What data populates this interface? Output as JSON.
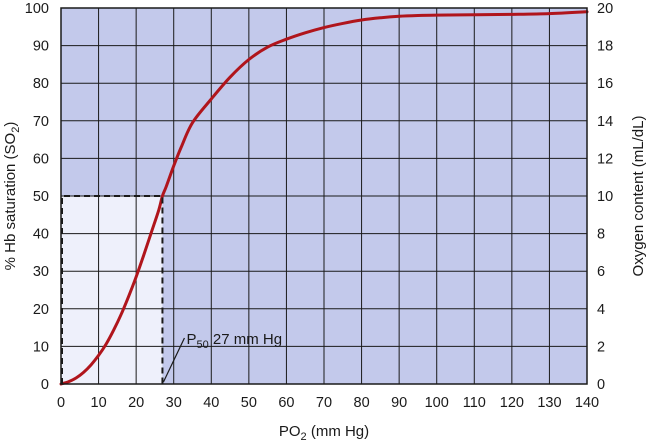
{
  "chart_data": {
    "type": "line",
    "title": "",
    "xlabel": {
      "base": "PO",
      "sub": "2",
      "rest": " (mm Hg)"
    },
    "ylabel_left": {
      "base": "% Hb saturation (SO",
      "sub": "2",
      "rest": ")"
    },
    "ylabel_right": "Oxygen content (mL/dL)",
    "xlim": [
      0,
      140
    ],
    "ylim_left": [
      0,
      100
    ],
    "ylim_right": [
      0,
      20
    ],
    "x_ticks": [
      "0",
      "10",
      "20",
      "30",
      "40",
      "50",
      "60",
      "70",
      "80",
      "90",
      "100",
      "110",
      "120",
      "130",
      "140"
    ],
    "y_left_ticks": [
      "0",
      "10",
      "20",
      "30",
      "40",
      "50",
      "60",
      "70",
      "80",
      "90",
      "100"
    ],
    "y_right_ticks": [
      "0",
      "2",
      "4",
      "6",
      "8",
      "10",
      "12",
      "14",
      "16",
      "18",
      "20"
    ],
    "grid": true,
    "colors": {
      "plot_bg": "#c3c9eb",
      "highlight_bg": "#eef0fb",
      "curve": "#b0151c",
      "grid": "#1a1a1a"
    },
    "series": [
      {
        "x": [
          0,
          2,
          4,
          6,
          8,
          10,
          12,
          14,
          16,
          18,
          20,
          22,
          24,
          26,
          27,
          28,
          30,
          32,
          35,
          40,
          45,
          50,
          55,
          60,
          65,
          70,
          75,
          80,
          85,
          90,
          95,
          100,
          110,
          120,
          130,
          140
        ],
        "y": [
          0,
          0.6,
          1.6,
          3.1,
          5.1,
          7.6,
          10.6,
          14.3,
          18.5,
          23.3,
          28.5,
          34.2,
          40.2,
          46.2,
          50,
          52.5,
          58,
          63,
          69.5,
          75.8,
          81.6,
          86.3,
          89.6,
          91.7,
          93.4,
          94.8,
          95.9,
          96.8,
          97.4,
          97.8,
          98.0,
          98.1,
          98.2,
          98.3,
          98.5,
          99.0
        ]
      }
    ],
    "annotation": {
      "p50_x": 27,
      "p50_y": 50,
      "label_base": "P",
      "label_sub": "50",
      "label_rest": " 27 mm Hg"
    }
  }
}
